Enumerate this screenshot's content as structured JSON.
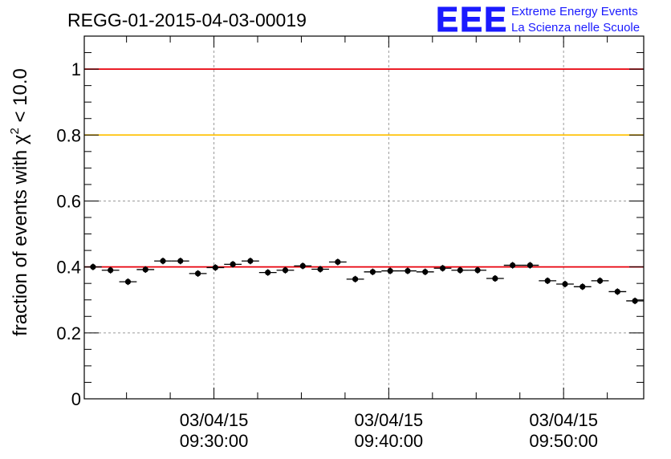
{
  "header": {
    "run_title": "REGG-01-2015-04-03-00019",
    "logo_text": "EEE",
    "logo_line1": "Extreme Energy Events",
    "logo_line2": "La Scienza nelle Scuole"
  },
  "chart_data": {
    "type": "scatter",
    "title": "REGG-01-2015-04-03-00019",
    "ylabel": "fraction of events with χ² < 10.0",
    "ylabel_main": "fraction of events with χ",
    "ylabel_sup": "2",
    "ylabel_tail": " < 10.0",
    "xlabel": "",
    "ylim": [
      0,
      1.1
    ],
    "xlim": [
      "2015-04-03 09:22:35",
      "2015-04-03 09:54:35"
    ],
    "y_ticks": [
      0,
      0.2,
      0.4,
      0.6,
      0.8,
      1
    ],
    "y_tick_labels": [
      "0",
      "0.2",
      "0.4",
      "0.6",
      "0.8",
      "1"
    ],
    "x_tick_labels": [
      {
        "x": "2015-04-03 09:30:00",
        "date": "03/04/15",
        "time": "09:30:00"
      },
      {
        "x": "2015-04-03 09:40:00",
        "date": "03/04/15",
        "time": "09:40:00"
      },
      {
        "x": "2015-04-03 09:50:00",
        "date": "03/04/15",
        "time": "09:50:00"
      }
    ],
    "grid": true,
    "reference_lines": [
      {
        "y": 1.0,
        "color": "#e8000b"
      },
      {
        "y": 0.8,
        "color": "#ffc000"
      },
      {
        "y": 0.4,
        "color": "#e8000b"
      }
    ],
    "marker_color": "#000000",
    "points": [
      {
        "x": "2015-04-03 09:23:05",
        "y": 0.4
      },
      {
        "x": "2015-04-03 09:24:05",
        "y": 0.39
      },
      {
        "x": "2015-04-03 09:25:05",
        "y": 0.355
      },
      {
        "x": "2015-04-03 09:26:05",
        "y": 0.392
      },
      {
        "x": "2015-04-03 09:27:05",
        "y": 0.418
      },
      {
        "x": "2015-04-03 09:28:05",
        "y": 0.418
      },
      {
        "x": "2015-04-03 09:29:05",
        "y": 0.38
      },
      {
        "x": "2015-04-03 09:30:05",
        "y": 0.398
      },
      {
        "x": "2015-04-03 09:31:05",
        "y": 0.408
      },
      {
        "x": "2015-04-03 09:32:05",
        "y": 0.418
      },
      {
        "x": "2015-04-03 09:33:05",
        "y": 0.383
      },
      {
        "x": "2015-04-03 09:34:05",
        "y": 0.39
      },
      {
        "x": "2015-04-03 09:35:05",
        "y": 0.403
      },
      {
        "x": "2015-04-03 09:36:05",
        "y": 0.393
      },
      {
        "x": "2015-04-03 09:37:05",
        "y": 0.415
      },
      {
        "x": "2015-04-03 09:38:05",
        "y": 0.363
      },
      {
        "x": "2015-04-03 09:39:05",
        "y": 0.385
      },
      {
        "x": "2015-04-03 09:40:05",
        "y": 0.388
      },
      {
        "x": "2015-04-03 09:41:05",
        "y": 0.388
      },
      {
        "x": "2015-04-03 09:42:05",
        "y": 0.385
      },
      {
        "x": "2015-04-03 09:43:05",
        "y": 0.396
      },
      {
        "x": "2015-04-03 09:44:05",
        "y": 0.39
      },
      {
        "x": "2015-04-03 09:45:05",
        "y": 0.39
      },
      {
        "x": "2015-04-03 09:46:05",
        "y": 0.365
      },
      {
        "x": "2015-04-03 09:47:05",
        "y": 0.405
      },
      {
        "x": "2015-04-03 09:48:05",
        "y": 0.405
      },
      {
        "x": "2015-04-03 09:49:05",
        "y": 0.358
      },
      {
        "x": "2015-04-03 09:50:05",
        "y": 0.348
      },
      {
        "x": "2015-04-03 09:51:05",
        "y": 0.34
      },
      {
        "x": "2015-04-03 09:52:05",
        "y": 0.358
      },
      {
        "x": "2015-04-03 09:53:05",
        "y": 0.325
      },
      {
        "x": "2015-04-03 09:54:05",
        "y": 0.297
      }
    ],
    "x_half_width_seconds": 30,
    "y_error": 0.01
  }
}
